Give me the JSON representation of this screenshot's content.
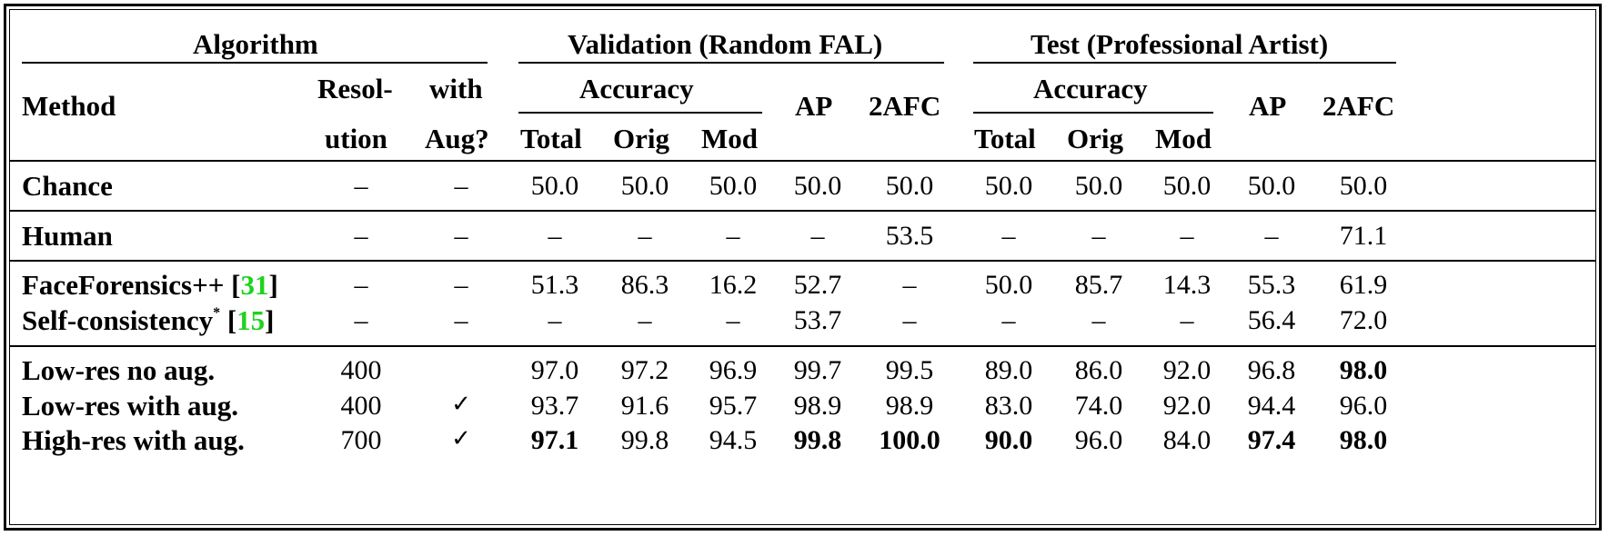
{
  "headers": {
    "algorithm": "Algorithm",
    "validation": "Validation (Random FAL)",
    "test": "Test (Professional Artist)",
    "method": "Method",
    "resolution_l1": "Resol-",
    "resolution_l2": "ution",
    "aug_l1": "with",
    "aug_l2": "Aug?",
    "accuracy": "Accuracy",
    "total": "Total",
    "orig": "Orig",
    "mod": "Mod",
    "ap": "AP",
    "afc": "2AFC"
  },
  "rows": [
    {
      "method": "Chance",
      "res": "–",
      "aug": "–",
      "v": [
        "50.0",
        "50.0",
        "50.0",
        "50.0",
        "50.0"
      ],
      "t": [
        "50.0",
        "50.0",
        "50.0",
        "50.0",
        "50.0"
      ]
    },
    {
      "method": "Human",
      "res": "–",
      "aug": "–",
      "v": [
        "–",
        "–",
        "–",
        "–",
        "53.5"
      ],
      "t": [
        "–",
        "–",
        "–",
        "–",
        "71.1"
      ]
    },
    {
      "method": "FaceForensics++ [",
      "ref": "31",
      "close": "]",
      "res": "–",
      "aug": "–",
      "v": [
        "51.3",
        "86.3",
        "16.2",
        "52.7",
        "–"
      ],
      "t": [
        "50.0",
        "85.7",
        "14.3",
        "55.3",
        "61.9"
      ]
    },
    {
      "method": "Self-consistency",
      "sup": "*",
      "open": " [",
      "ref": "15",
      "close": "]",
      "res": "–",
      "aug": "–",
      "v": [
        "–",
        "–",
        "–",
        "53.7",
        "–"
      ],
      "t": [
        "–",
        "–",
        "–",
        "56.4",
        "72.0"
      ]
    },
    {
      "method": "Low-res no aug.",
      "res": "400",
      "aug": "",
      "v": [
        "97.0",
        "97.2",
        "96.9",
        "99.7",
        "99.5"
      ],
      "t": [
        "89.0",
        "86.0",
        "92.0",
        "96.8",
        "98.0"
      ]
    },
    {
      "method": "Low-res with aug.",
      "res": "400",
      "aug": "✓",
      "v": [
        "93.7",
        "91.6",
        "95.7",
        "98.9",
        "98.9"
      ],
      "t": [
        "83.0",
        "74.0",
        "92.0",
        "94.4",
        "96.0"
      ]
    },
    {
      "method": "High-res with aug.",
      "res": "700",
      "aug": "✓",
      "v": [
        "97.1",
        "99.8",
        "94.5",
        "99.8",
        "100.0"
      ],
      "t": [
        "90.0",
        "96.0",
        "84.0",
        "97.4",
        "98.0"
      ]
    }
  ]
}
